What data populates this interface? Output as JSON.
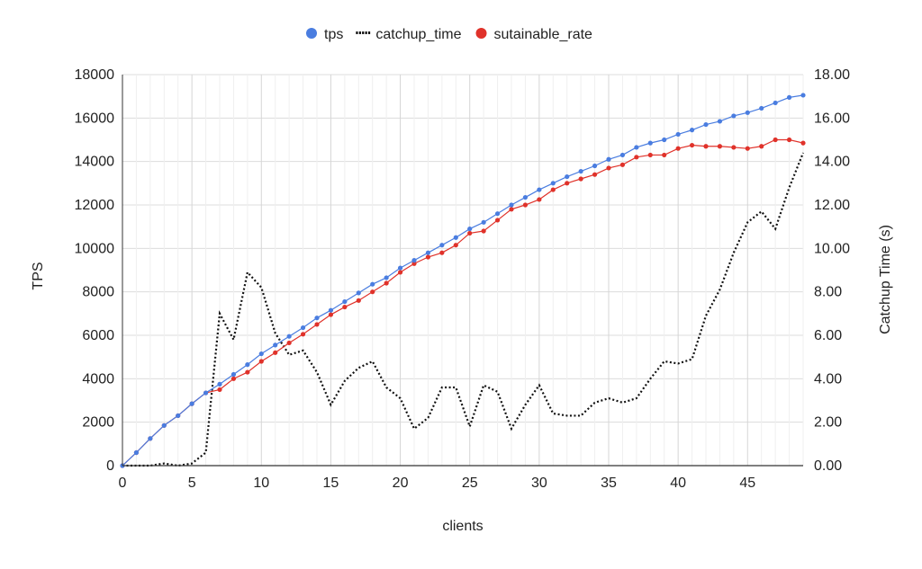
{
  "chart_data": {
    "type": "line",
    "xlabel": "clients",
    "ylabel_left": "TPS",
    "ylabel_right": "Catchup Time (s)",
    "xlim": [
      0,
      49
    ],
    "ylim_left": [
      0,
      18000
    ],
    "ylim_right": [
      0,
      18
    ],
    "x_ticks": [
      0,
      5,
      10,
      15,
      20,
      25,
      30,
      35,
      40,
      45
    ],
    "x_tick_labels": [
      "0",
      "5",
      "10",
      "15",
      "20",
      "25",
      "30",
      "35",
      "40",
      "45"
    ],
    "y_left_ticks": [
      0,
      2000,
      4000,
      6000,
      8000,
      10000,
      12000,
      14000,
      16000,
      18000
    ],
    "y_left_tick_labels": [
      "0",
      "2000",
      "4000",
      "6000",
      "8000",
      "10000",
      "12000",
      "14000",
      "16000",
      "18000"
    ],
    "y_right_ticks": [
      0,
      2,
      4,
      6,
      8,
      10,
      12,
      14,
      16,
      18
    ],
    "y_right_tick_labels": [
      "0.00",
      "2.00",
      "4.00",
      "6.00",
      "8.00",
      "10.00",
      "12.00",
      "14.00",
      "16.00",
      "18.00"
    ],
    "grid": true,
    "legend_position": "top",
    "legend": [
      {
        "label": "tps",
        "marker": "dot",
        "color": "#4a7de0"
      },
      {
        "label": "catchup_time",
        "marker": "dots",
        "color": "#111111"
      },
      {
        "label": "sutainable_rate",
        "marker": "dot",
        "color": "#e0322a"
      }
    ],
    "x": [
      0,
      1,
      2,
      3,
      4,
      5,
      6,
      7,
      8,
      9,
      10,
      11,
      12,
      13,
      14,
      15,
      16,
      17,
      18,
      19,
      20,
      21,
      22,
      23,
      24,
      25,
      26,
      27,
      28,
      29,
      30,
      31,
      32,
      33,
      34,
      35,
      36,
      37,
      38,
      39,
      40,
      41,
      42,
      43,
      44,
      45,
      46,
      47,
      48,
      49
    ],
    "series": [
      {
        "name": "tps",
        "axis": "left",
        "style": "line-markers",
        "color": "#4a7de0",
        "values": [
          0,
          600,
          1250,
          1850,
          2300,
          2850,
          3350,
          3750,
          4200,
          4650,
          5150,
          5550,
          5950,
          6350,
          6800,
          7150,
          7550,
          7950,
          8350,
          8650,
          9100,
          9450,
          9800,
          10150,
          10500,
          10900,
          11200,
          11600,
          12000,
          12350,
          12700,
          13000,
          13300,
          13550,
          13800,
          14100,
          14300,
          14650,
          14850,
          15000,
          15250,
          15450,
          15700,
          15850,
          16100,
          16250,
          16450,
          16700,
          16950,
          17050
        ]
      },
      {
        "name": "catchup_time",
        "axis": "right",
        "style": "dotted",
        "color": "#111111",
        "values": [
          0,
          0,
          0,
          0.1,
          0,
          0.1,
          0.6,
          7.0,
          5.8,
          8.9,
          8.2,
          6.1,
          5.1,
          5.3,
          4.3,
          2.8,
          3.9,
          4.5,
          4.8,
          3.6,
          3.1,
          1.7,
          2.2,
          3.6,
          3.6,
          1.8,
          3.7,
          3.4,
          1.7,
          2.8,
          3.7,
          2.4,
          2.3,
          2.3,
          2.9,
          3.1,
          2.9,
          3.1,
          4.0,
          4.8,
          4.7,
          4.9,
          6.9,
          8.1,
          9.8,
          11.2,
          11.7,
          10.9,
          12.8,
          14.4
        ]
      },
      {
        "name": "sutainable_rate",
        "axis": "left",
        "style": "line-markers",
        "color": "#e0322a",
        "values": [
          0,
          600,
          1250,
          1850,
          2300,
          2850,
          3350,
          3500,
          4000,
          4300,
          4800,
          5200,
          5650,
          6050,
          6500,
          6950,
          7300,
          7600,
          8000,
          8400,
          8900,
          9300,
          9600,
          9800,
          10150,
          10700,
          10800,
          11300,
          11800,
          12000,
          12250,
          12700,
          13000,
          13200,
          13400,
          13700,
          13850,
          14200,
          14300,
          14300,
          14600,
          14750,
          14700,
          14700,
          14650,
          14600,
          14700,
          15000,
          15000,
          14850
        ]
      }
    ]
  }
}
